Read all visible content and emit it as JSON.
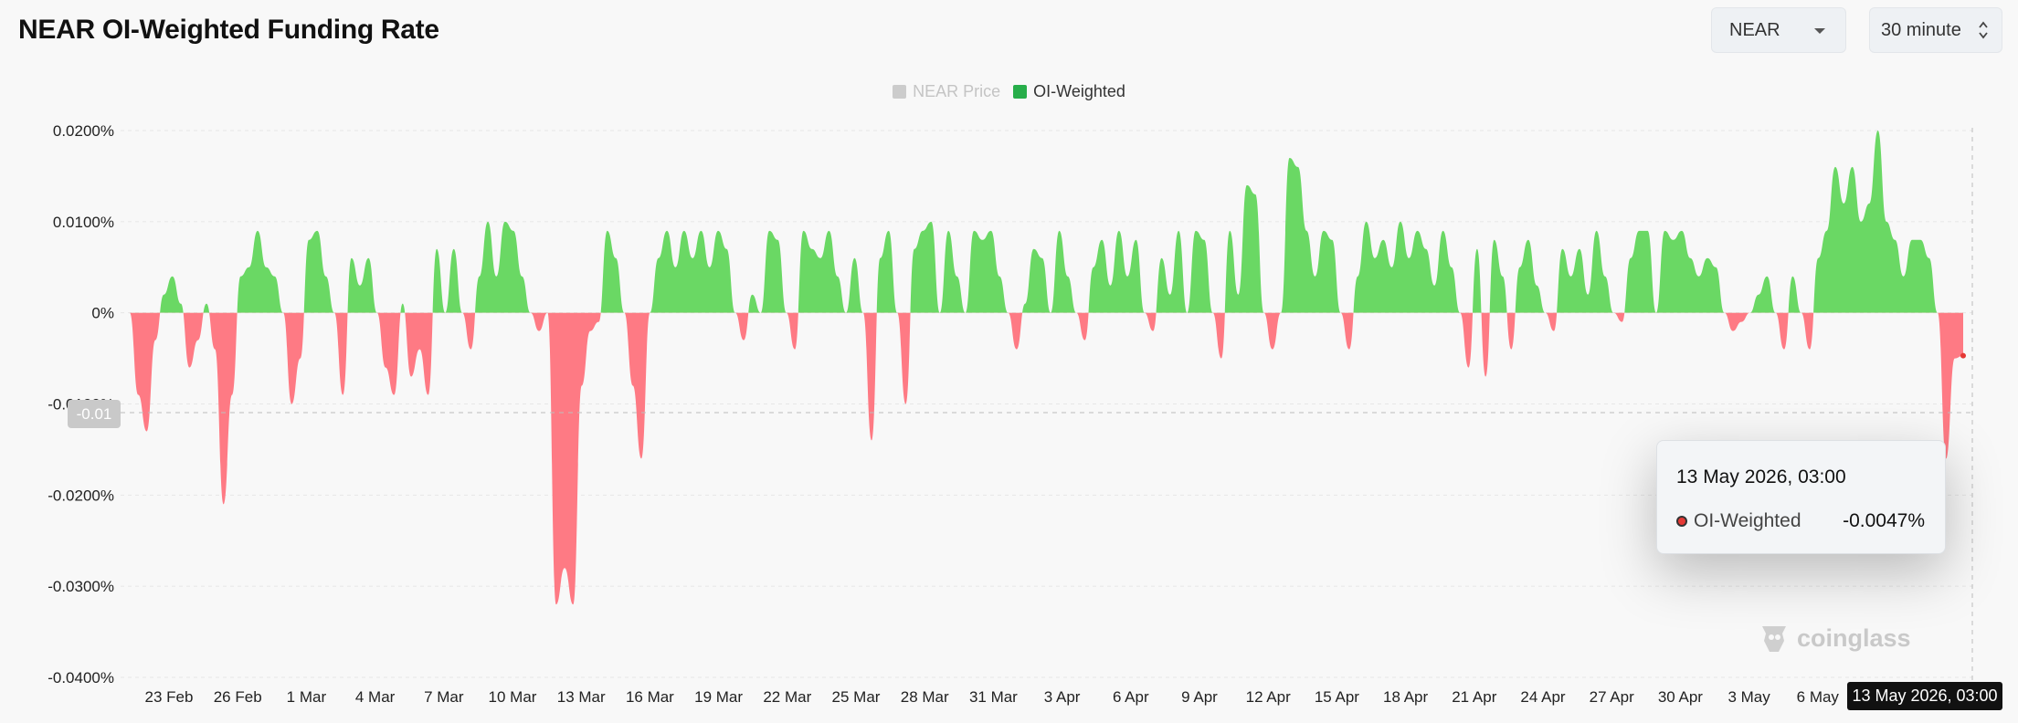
{
  "header": {
    "title": "NEAR OI-Weighted Funding Rate",
    "symbol_select": "NEAR",
    "interval_select": "30 minute"
  },
  "legend": {
    "price_label": "NEAR Price",
    "oi_label": "OI-Weighted"
  },
  "tooltip": {
    "date": "13 May 2026, 03:00",
    "series": "OI-Weighted",
    "value": "-0.0047%"
  },
  "crosshair": {
    "x_label": "13 May 2026, 03:00",
    "y_label": "-0.01"
  },
  "watermark": "coinglass",
  "colors": {
    "positive": "#6ad864",
    "negative": "#fe7a84",
    "legend_on": "#27ae4a",
    "legend_off": "#cccccc"
  },
  "chart_data": {
    "type": "area",
    "series": [
      {
        "name": "OI-Weighted",
        "unit": "%"
      }
    ],
    "ylim": [
      -0.04,
      0.02
    ],
    "yticks": [
      0.02,
      0.01,
      0,
      -0.01,
      -0.02,
      -0.03,
      -0.04
    ],
    "ytick_labels": [
      "0.0200%",
      "0.0100%",
      "0%",
      "-0.0100%",
      "-0.0200%",
      "-0.0300%",
      "-0.0400%"
    ],
    "xlim": [
      "2026-02-21",
      "2026-05-13T03:00"
    ],
    "xtick_labels": [
      "23 Feb",
      "26 Feb",
      "1 Mar",
      "4 Mar",
      "7 Mar",
      "10 Mar",
      "13 Mar",
      "16 Mar",
      "19 Mar",
      "22 Mar",
      "25 Mar",
      "28 Mar",
      "31 Mar",
      "3 Apr",
      "6 Apr",
      "9 Apr",
      "12 Apr",
      "15 Apr",
      "18 Apr",
      "21 Apr",
      "24 Apr",
      "27 Apr",
      "30 Apr",
      "3 May",
      "6 May"
    ],
    "points": [
      [
        "21 Feb",
        0.0
      ],
      [
        "21 Feb",
        -0.009
      ],
      [
        "22 Feb",
        -0.013
      ],
      [
        "22 Feb",
        -0.003
      ],
      [
        "22 Feb",
        0.002
      ],
      [
        "23 Feb",
        0.004
      ],
      [
        "23 Feb",
        0.001
      ],
      [
        "23 Feb",
        -0.006
      ],
      [
        "23 Feb",
        -0.003
      ],
      [
        "24 Feb",
        0.001
      ],
      [
        "24 Feb",
        -0.004
      ],
      [
        "24 Feb",
        -0.021
      ],
      [
        "24 Feb",
        -0.009
      ],
      [
        "25 Feb",
        0.004
      ],
      [
        "25 Feb",
        0.005
      ],
      [
        "25 Feb",
        0.009
      ],
      [
        "25 Feb",
        0.005
      ],
      [
        "26 Feb",
        0.004
      ],
      [
        "26 Feb",
        0.0
      ],
      [
        "26 Feb",
        -0.01
      ],
      [
        "26 Feb",
        -0.005
      ],
      [
        "27 Feb",
        0.008
      ],
      [
        "27 Feb",
        0.009
      ],
      [
        "27 Feb",
        0.004
      ],
      [
        "28 Feb",
        0.0
      ],
      [
        "28 Feb",
        -0.009
      ],
      [
        "28 Feb",
        0.006
      ],
      [
        "28 Feb",
        0.003
      ],
      [
        "1 Mar",
        0.006
      ],
      [
        "1 Mar",
        0.0
      ],
      [
        "1 Mar",
        -0.006
      ],
      [
        "2 Mar",
        -0.009
      ],
      [
        "2 Mar",
        0.001
      ],
      [
        "2 Mar",
        -0.007
      ],
      [
        "2 Mar",
        -0.004
      ],
      [
        "3 Mar",
        -0.009
      ],
      [
        "3 Mar",
        0.007
      ],
      [
        "3 Mar",
        0.0
      ],
      [
        "4 Mar",
        0.007
      ],
      [
        "4 Mar",
        0.0
      ],
      [
        "4 Mar",
        -0.004
      ],
      [
        "4 Mar",
        0.004
      ],
      [
        "5 Mar",
        0.01
      ],
      [
        "5 Mar",
        0.004
      ],
      [
        "5 Mar",
        0.01
      ],
      [
        "6 Mar",
        0.009
      ],
      [
        "6 Mar",
        0.004
      ],
      [
        "6 Mar",
        0.0
      ],
      [
        "6 Mar",
        -0.002
      ],
      [
        "7 Mar",
        0.0
      ],
      [
        "7 Mar",
        -0.032
      ],
      [
        "8 Mar",
        -0.028
      ],
      [
        "8 Mar",
        -0.032
      ],
      [
        "8 Mar",
        -0.008
      ],
      [
        "9 Mar",
        -0.002
      ],
      [
        "9 Mar",
        -0.001
      ],
      [
        "9 Mar",
        0.009
      ],
      [
        "10 Mar",
        0.006
      ],
      [
        "10 Mar",
        0.0
      ],
      [
        "10 Mar",
        -0.008
      ],
      [
        "11 Mar",
        -0.016
      ],
      [
        "11 Mar",
        0.0
      ],
      [
        "11 Mar",
        0.006
      ],
      [
        "12 Mar",
        0.009
      ],
      [
        "12 Mar",
        0.005
      ],
      [
        "13 Mar",
        0.009
      ],
      [
        "13 Mar",
        0.006
      ],
      [
        "14 Mar",
        0.009
      ],
      [
        "14 Mar",
        0.005
      ],
      [
        "14 Mar",
        0.009
      ],
      [
        "15 Mar",
        0.007
      ],
      [
        "15 Mar",
        0.0
      ],
      [
        "16 Mar",
        -0.003
      ],
      [
        "16 Mar",
        0.002
      ],
      [
        "16 Mar",
        0.0
      ],
      [
        "17 Mar",
        0.009
      ],
      [
        "17 Mar",
        0.008
      ],
      [
        "17 Mar",
        0.0
      ],
      [
        "18 Mar",
        -0.004
      ],
      [
        "18 Mar",
        0.009
      ],
      [
        "18 Mar",
        0.007
      ],
      [
        "19 Mar",
        0.006
      ],
      [
        "19 Mar",
        0.009
      ],
      [
        "20 Mar",
        0.004
      ],
      [
        "20 Mar",
        0.0
      ],
      [
        "21 Mar",
        0.006
      ],
      [
        "21 Mar",
        0.0
      ],
      [
        "21 Mar",
        -0.014
      ],
      [
        "22 Mar",
        0.006
      ],
      [
        "22 Mar",
        0.009
      ],
      [
        "22 Mar",
        0.0
      ],
      [
        "23 Mar",
        -0.01
      ],
      [
        "23 Mar",
        0.007
      ],
      [
        "23 Mar",
        0.009
      ],
      [
        "24 Mar",
        0.01
      ],
      [
        "24 Mar",
        0.0
      ],
      [
        "25 Mar",
        0.009
      ],
      [
        "25 Mar",
        0.004
      ],
      [
        "25 Mar",
        0.0
      ],
      [
        "26 Mar",
        0.009
      ],
      [
        "26 Mar",
        0.008
      ],
      [
        "27 Mar",
        0.009
      ],
      [
        "27 Mar",
        0.004
      ],
      [
        "27 Mar",
        0.0
      ],
      [
        "28 Mar",
        -0.004
      ],
      [
        "28 Mar",
        0.001
      ],
      [
        "28 Mar",
        0.007
      ],
      [
        "29 Mar",
        0.006
      ],
      [
        "29 Mar",
        0.0
      ],
      [
        "30 Mar",
        0.009
      ],
      [
        "30 Mar",
        0.004
      ],
      [
        "31 Mar",
        0.0
      ],
      [
        "31 Mar",
        -0.003
      ],
      [
        "31 Mar",
        0.005
      ],
      [
        "1 Apr",
        0.008
      ],
      [
        "1 Apr",
        0.003
      ],
      [
        "1 Apr",
        0.009
      ],
      [
        "2 Apr",
        0.004
      ],
      [
        "2 Apr",
        0.008
      ],
      [
        "2 Apr",
        0.0
      ],
      [
        "3 Apr",
        -0.002
      ],
      [
        "3 Apr",
        0.006
      ],
      [
        "3 Apr",
        0.002
      ],
      [
        "4 Apr",
        0.009
      ],
      [
        "4 Apr",
        0.0
      ],
      [
        "5 Apr",
        0.009
      ],
      [
        "5 Apr",
        0.008
      ],
      [
        "5 Apr",
        0.0
      ],
      [
        "6 Apr",
        -0.005
      ],
      [
        "6 Apr",
        0.009
      ],
      [
        "6 Apr",
        0.002
      ],
      [
        "7 Apr",
        0.014
      ],
      [
        "7 Apr",
        0.013
      ],
      [
        "7 Apr",
        0.0
      ],
      [
        "8 Apr",
        -0.004
      ],
      [
        "8 Apr",
        0.0
      ],
      [
        "9 Apr",
        0.017
      ],
      [
        "9 Apr",
        0.016
      ],
      [
        "10 Apr",
        0.009
      ],
      [
        "10 Apr",
        0.004
      ],
      [
        "10 Apr",
        0.009
      ],
      [
        "11 Apr",
        0.008
      ],
      [
        "11 Apr",
        0.0
      ],
      [
        "11 Apr",
        -0.004
      ],
      [
        "12 Apr",
        0.004
      ],
      [
        "12 Apr",
        0.01
      ],
      [
        "12 Apr",
        0.006
      ],
      [
        "13 Apr",
        0.008
      ],
      [
        "13 Apr",
        0.005
      ],
      [
        "14 Apr",
        0.01
      ],
      [
        "14 Apr",
        0.006
      ],
      [
        "14 Apr",
        0.009
      ],
      [
        "15 Apr",
        0.007
      ],
      [
        "15 Apr",
        0.003
      ],
      [
        "16 Apr",
        0.009
      ],
      [
        "16 Apr",
        0.005
      ],
      [
        "16 Apr",
        0.0
      ],
      [
        "17 Apr",
        -0.006
      ],
      [
        "17 Apr",
        0.007
      ],
      [
        "17 Apr",
        -0.007
      ],
      [
        "18 Apr",
        0.008
      ],
      [
        "18 Apr",
        0.004
      ],
      [
        "18 Apr",
        -0.004
      ],
      [
        "19 Apr",
        0.005
      ],
      [
        "19 Apr",
        0.008
      ],
      [
        "20 Apr",
        0.003
      ],
      [
        "20 Apr",
        0.0
      ],
      [
        "21 Apr",
        -0.002
      ],
      [
        "21 Apr",
        0.007
      ],
      [
        "21 Apr",
        0.004
      ],
      [
        "22 Apr",
        0.007
      ],
      [
        "22 Apr",
        0.002
      ],
      [
        "23 Apr",
        0.009
      ],
      [
        "23 Apr",
        0.004
      ],
      [
        "23 Apr",
        0.0
      ],
      [
        "24 Apr",
        -0.001
      ],
      [
        "24 Apr",
        0.006
      ],
      [
        "24 Apr",
        0.009
      ],
      [
        "25 Apr",
        0.009
      ],
      [
        "25 Apr",
        0.0
      ],
      [
        "26 Apr",
        0.009
      ],
      [
        "26 Apr",
        0.008
      ],
      [
        "27 Apr",
        0.009
      ],
      [
        "27 Apr",
        0.006
      ],
      [
        "28 Apr",
        0.004
      ],
      [
        "28 Apr",
        0.006
      ],
      [
        "29 Apr",
        0.005
      ],
      [
        "29 Apr",
        0.0
      ],
      [
        "30 Apr",
        -0.002
      ],
      [
        "30 Apr",
        -0.001
      ],
      [
        "1 May",
        0.0
      ],
      [
        "1 May",
        0.002
      ],
      [
        "2 May",
        0.004
      ],
      [
        "2 May",
        0.0
      ],
      [
        "2 May",
        -0.004
      ],
      [
        "3 May",
        0.004
      ],
      [
        "3 May",
        0.0
      ],
      [
        "3 May",
        -0.004
      ],
      [
        "4 May",
        0.006
      ],
      [
        "4 May",
        0.009
      ],
      [
        "5 May",
        0.016
      ],
      [
        "5 May",
        0.012
      ],
      [
        "6 May",
        0.016
      ],
      [
        "6 May",
        0.01
      ],
      [
        "6 May",
        0.012
      ],
      [
        "7 May",
        0.02
      ],
      [
        "7 May",
        0.01
      ],
      [
        "8 May",
        0.008
      ],
      [
        "8 May",
        0.004
      ],
      [
        "9 May",
        0.008
      ],
      [
        "9 May",
        0.008
      ],
      [
        "10 May",
        0.006
      ],
      [
        "10 May",
        0.0
      ],
      [
        "11 May",
        -0.016
      ],
      [
        "11 May",
        -0.005
      ],
      [
        "12 May",
        -0.0047
      ]
    ]
  }
}
